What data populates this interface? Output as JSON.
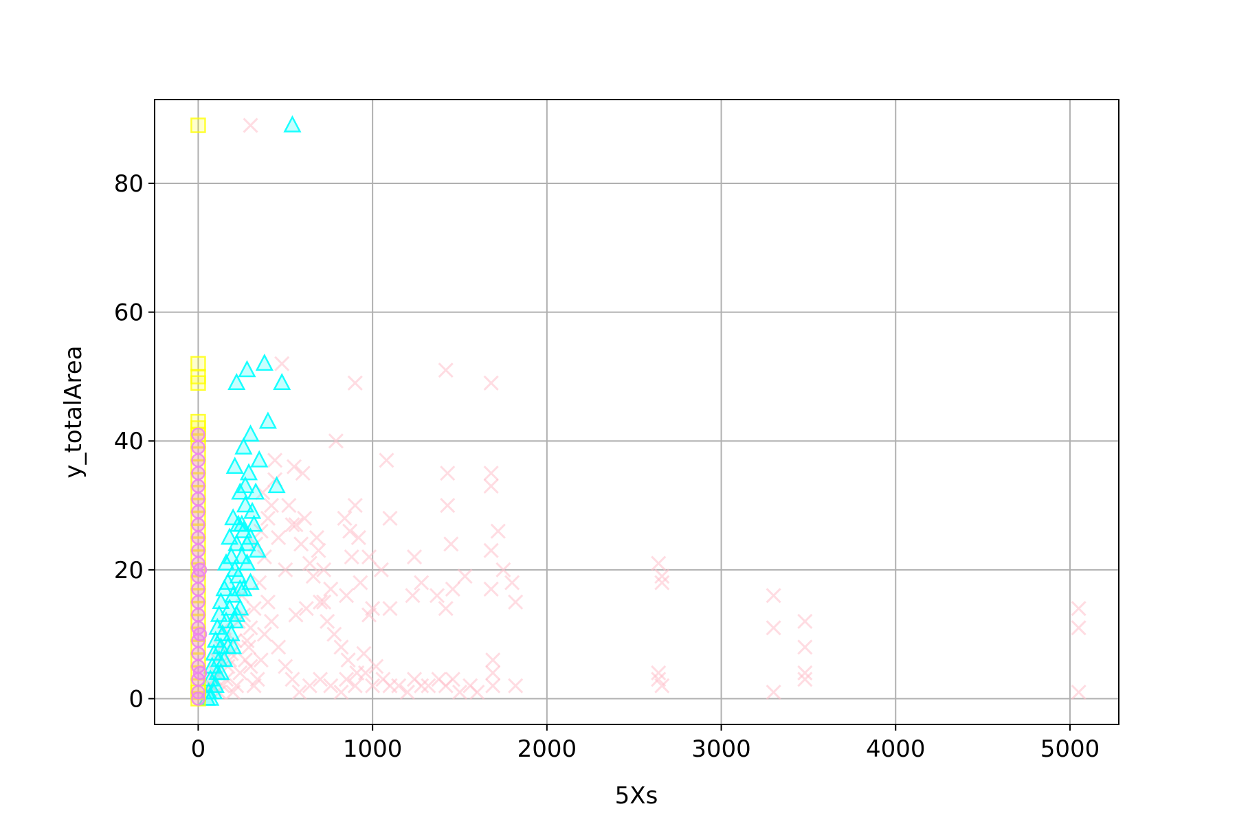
{
  "chart_data": {
    "type": "scatter",
    "title": "",
    "xlabel": "5Xs",
    "ylabel": "y_totalArea",
    "xlim": [
      -250,
      5280
    ],
    "ylim": [
      -4,
      93
    ],
    "xticks": [
      0,
      1000,
      2000,
      3000,
      4000,
      5000
    ],
    "xtick_labels": [
      "0",
      "1000",
      "2000",
      "3000",
      "4000",
      "5000"
    ],
    "yticks": [
      0,
      20,
      40,
      60,
      80
    ],
    "ytick_labels": [
      "0",
      "20",
      "40",
      "60",
      "80"
    ],
    "grid": true,
    "legend": "none",
    "series": [
      {
        "marker": "x",
        "color": "#ffc0cb",
        "points": [
          [
            300,
            89
          ],
          [
            480,
            52
          ],
          [
            1420,
            51
          ],
          [
            900,
            49
          ],
          [
            1680,
            49
          ],
          [
            790,
            40
          ],
          [
            1080,
            37
          ],
          [
            440,
            37
          ],
          [
            550,
            36
          ],
          [
            600,
            35
          ],
          [
            1430,
            35
          ],
          [
            1680,
            35
          ],
          [
            1680,
            33
          ],
          [
            1430,
            30
          ],
          [
            900,
            30
          ],
          [
            1100,
            28
          ],
          [
            840,
            28
          ],
          [
            870,
            26
          ],
          [
            920,
            25
          ],
          [
            560,
            27
          ],
          [
            1720,
            26
          ],
          [
            1450,
            24
          ],
          [
            1680,
            23
          ],
          [
            980,
            22
          ],
          [
            1240,
            22
          ],
          [
            690,
            23
          ],
          [
            640,
            21
          ],
          [
            1750,
            20
          ],
          [
            1800,
            18
          ],
          [
            2640,
            21
          ],
          [
            2660,
            19
          ],
          [
            2660,
            18
          ],
          [
            1280,
            18
          ],
          [
            1460,
            17
          ],
          [
            1680,
            17
          ],
          [
            1370,
            16
          ],
          [
            1230,
            16
          ],
          [
            1420,
            14
          ],
          [
            1100,
            14
          ],
          [
            1530,
            19
          ],
          [
            1820,
            15
          ],
          [
            620,
            14
          ],
          [
            560,
            13
          ],
          [
            720,
            15
          ],
          [
            850,
            16
          ],
          [
            980,
            13
          ],
          [
            3300,
            16
          ],
          [
            3300,
            11
          ],
          [
            3480,
            12
          ],
          [
            3480,
            8
          ],
          [
            3480,
            4
          ],
          [
            3480,
            3
          ],
          [
            5050,
            14
          ],
          [
            5050,
            11
          ],
          [
            5050,
            1
          ],
          [
            3300,
            1
          ],
          [
            2640,
            4
          ],
          [
            2660,
            2
          ],
          [
            2640,
            3
          ],
          [
            1690,
            6
          ],
          [
            1690,
            4
          ],
          [
            1690,
            2
          ],
          [
            1820,
            2
          ],
          [
            1460,
            3
          ],
          [
            1420,
            2
          ],
          [
            1380,
            3
          ],
          [
            1240,
            3
          ],
          [
            1280,
            2
          ],
          [
            1100,
            2
          ],
          [
            1000,
            2
          ],
          [
            950,
            7
          ],
          [
            960,
            4
          ],
          [
            900,
            2
          ],
          [
            850,
            3
          ],
          [
            820,
            1
          ],
          [
            760,
            2
          ],
          [
            700,
            3
          ],
          [
            640,
            2
          ],
          [
            580,
            1
          ],
          [
            540,
            3
          ],
          [
            500,
            5
          ],
          [
            460,
            8
          ],
          [
            420,
            12
          ],
          [
            400,
            15
          ],
          [
            380,
            10
          ],
          [
            360,
            6
          ],
          [
            340,
            3
          ],
          [
            320,
            2
          ],
          [
            300,
            5
          ],
          [
            280,
            9
          ],
          [
            260,
            13
          ],
          [
            240,
            4
          ],
          [
            220,
            2
          ],
          [
            200,
            1
          ],
          [
            180,
            6
          ],
          [
            160,
            3
          ],
          [
            140,
            2
          ],
          [
            120,
            1
          ],
          [
            100,
            4
          ],
          [
            80,
            2
          ],
          [
            350,
            18
          ],
          [
            320,
            14
          ],
          [
            300,
            11
          ],
          [
            290,
            8
          ],
          [
            270,
            6
          ],
          [
            250,
            16
          ],
          [
            230,
            12
          ],
          [
            210,
            9
          ],
          [
            190,
            7
          ],
          [
            170,
            5
          ],
          [
            150,
            11
          ],
          [
            130,
            8
          ],
          [
            110,
            6
          ],
          [
            90,
            3
          ],
          [
            70,
            2
          ],
          [
            420,
            30
          ],
          [
            460,
            25
          ],
          [
            500,
            20
          ],
          [
            380,
            22
          ],
          [
            360,
            26
          ],
          [
            330,
            24
          ],
          [
            400,
            28
          ],
          [
            440,
            34
          ],
          [
            370,
            32
          ],
          [
            520,
            30
          ],
          [
            540,
            27
          ],
          [
            590,
            24
          ],
          [
            610,
            28
          ],
          [
            660,
            19
          ],
          [
            700,
            15
          ],
          [
            740,
            12
          ],
          [
            780,
            10
          ],
          [
            820,
            8
          ],
          [
            860,
            6
          ],
          [
            910,
            4
          ],
          [
            1020,
            5
          ],
          [
            1060,
            3
          ],
          [
            1150,
            2
          ],
          [
            1200,
            1
          ],
          [
            1320,
            2
          ],
          [
            1500,
            1
          ],
          [
            1560,
            2
          ],
          [
            1600,
            1
          ],
          [
            1050,
            20
          ],
          [
            880,
            22
          ],
          [
            930,
            18
          ],
          [
            1000,
            14
          ],
          [
            760,
            17
          ],
          [
            720,
            20
          ],
          [
            680,
            25
          ]
        ]
      },
      {
        "marker": "triangle",
        "color": "#00ffff",
        "points": [
          [
            540,
            89
          ],
          [
            380,
            52
          ],
          [
            280,
            51
          ],
          [
            220,
            49
          ],
          [
            480,
            49
          ],
          [
            400,
            43
          ],
          [
            300,
            41
          ],
          [
            260,
            39
          ],
          [
            350,
            37
          ],
          [
            210,
            36
          ],
          [
            290,
            35
          ],
          [
            450,
            33
          ],
          [
            330,
            32
          ],
          [
            240,
            32
          ],
          [
            270,
            30
          ],
          [
            310,
            29
          ],
          [
            200,
            28
          ],
          [
            230,
            27
          ],
          [
            260,
            26
          ],
          [
            180,
            25
          ],
          [
            300,
            25
          ],
          [
            220,
            24
          ],
          [
            340,
            23
          ],
          [
            190,
            22
          ],
          [
            250,
            22
          ],
          [
            160,
            21
          ],
          [
            280,
            21
          ],
          [
            210,
            20
          ],
          [
            230,
            19
          ],
          [
            170,
            18
          ],
          [
            300,
            18
          ],
          [
            150,
            17
          ],
          [
            260,
            17
          ],
          [
            200,
            16
          ],
          [
            130,
            15
          ],
          [
            180,
            14
          ],
          [
            240,
            14
          ],
          [
            120,
            13
          ],
          [
            160,
            12
          ],
          [
            210,
            12
          ],
          [
            110,
            11
          ],
          [
            140,
            10
          ],
          [
            190,
            10
          ],
          [
            100,
            9
          ],
          [
            130,
            8
          ],
          [
            170,
            8
          ],
          [
            90,
            7
          ],
          [
            120,
            6
          ],
          [
            150,
            6
          ],
          [
            80,
            5
          ],
          [
            110,
            4
          ],
          [
            130,
            4
          ],
          [
            70,
            3
          ],
          [
            100,
            2
          ],
          [
            60,
            1
          ],
          [
            90,
            1
          ],
          [
            50,
            0
          ],
          [
            70,
            0
          ],
          [
            280,
            24
          ],
          [
            250,
            27
          ],
          [
            270,
            33
          ],
          [
            320,
            27
          ],
          [
            240,
            17
          ],
          [
            220,
            13
          ],
          [
            200,
            8
          ]
        ]
      },
      {
        "marker": "square",
        "color": "#ffff00",
        "points": [
          [
            0,
            89
          ],
          [
            0,
            52
          ],
          [
            0,
            50
          ],
          [
            0,
            49
          ],
          [
            0,
            43
          ],
          [
            0,
            42
          ],
          [
            0,
            41
          ],
          [
            0,
            40
          ],
          [
            0,
            38
          ],
          [
            0,
            36
          ],
          [
            0,
            34
          ],
          [
            0,
            32
          ],
          [
            0,
            30
          ],
          [
            0,
            28
          ],
          [
            0,
            26
          ],
          [
            0,
            24
          ],
          [
            0,
            22
          ],
          [
            0,
            20
          ],
          [
            0,
            18
          ],
          [
            0,
            16
          ],
          [
            0,
            14
          ],
          [
            0,
            12
          ],
          [
            0,
            10
          ],
          [
            0,
            8
          ],
          [
            0,
            6
          ],
          [
            0,
            4
          ],
          [
            0,
            2
          ],
          [
            0,
            1
          ],
          [
            0,
            0
          ]
        ]
      },
      {
        "marker": "circle",
        "color": "#ee82ee",
        "points": [
          [
            0,
            41
          ],
          [
            0,
            39
          ],
          [
            0,
            37
          ],
          [
            0,
            35
          ],
          [
            0,
            33
          ],
          [
            0,
            31
          ],
          [
            0,
            29
          ],
          [
            0,
            27
          ],
          [
            0,
            25
          ],
          [
            0,
            23
          ],
          [
            0,
            21
          ],
          [
            0,
            19
          ],
          [
            0,
            17
          ],
          [
            0,
            15
          ],
          [
            0,
            13
          ],
          [
            0,
            11
          ],
          [
            0,
            9
          ],
          [
            0,
            7
          ],
          [
            0,
            5
          ],
          [
            0,
            3
          ],
          [
            0,
            1
          ],
          [
            0,
            0
          ],
          [
            10,
            20
          ],
          [
            10,
            10
          ],
          [
            10,
            4
          ]
        ]
      }
    ]
  }
}
